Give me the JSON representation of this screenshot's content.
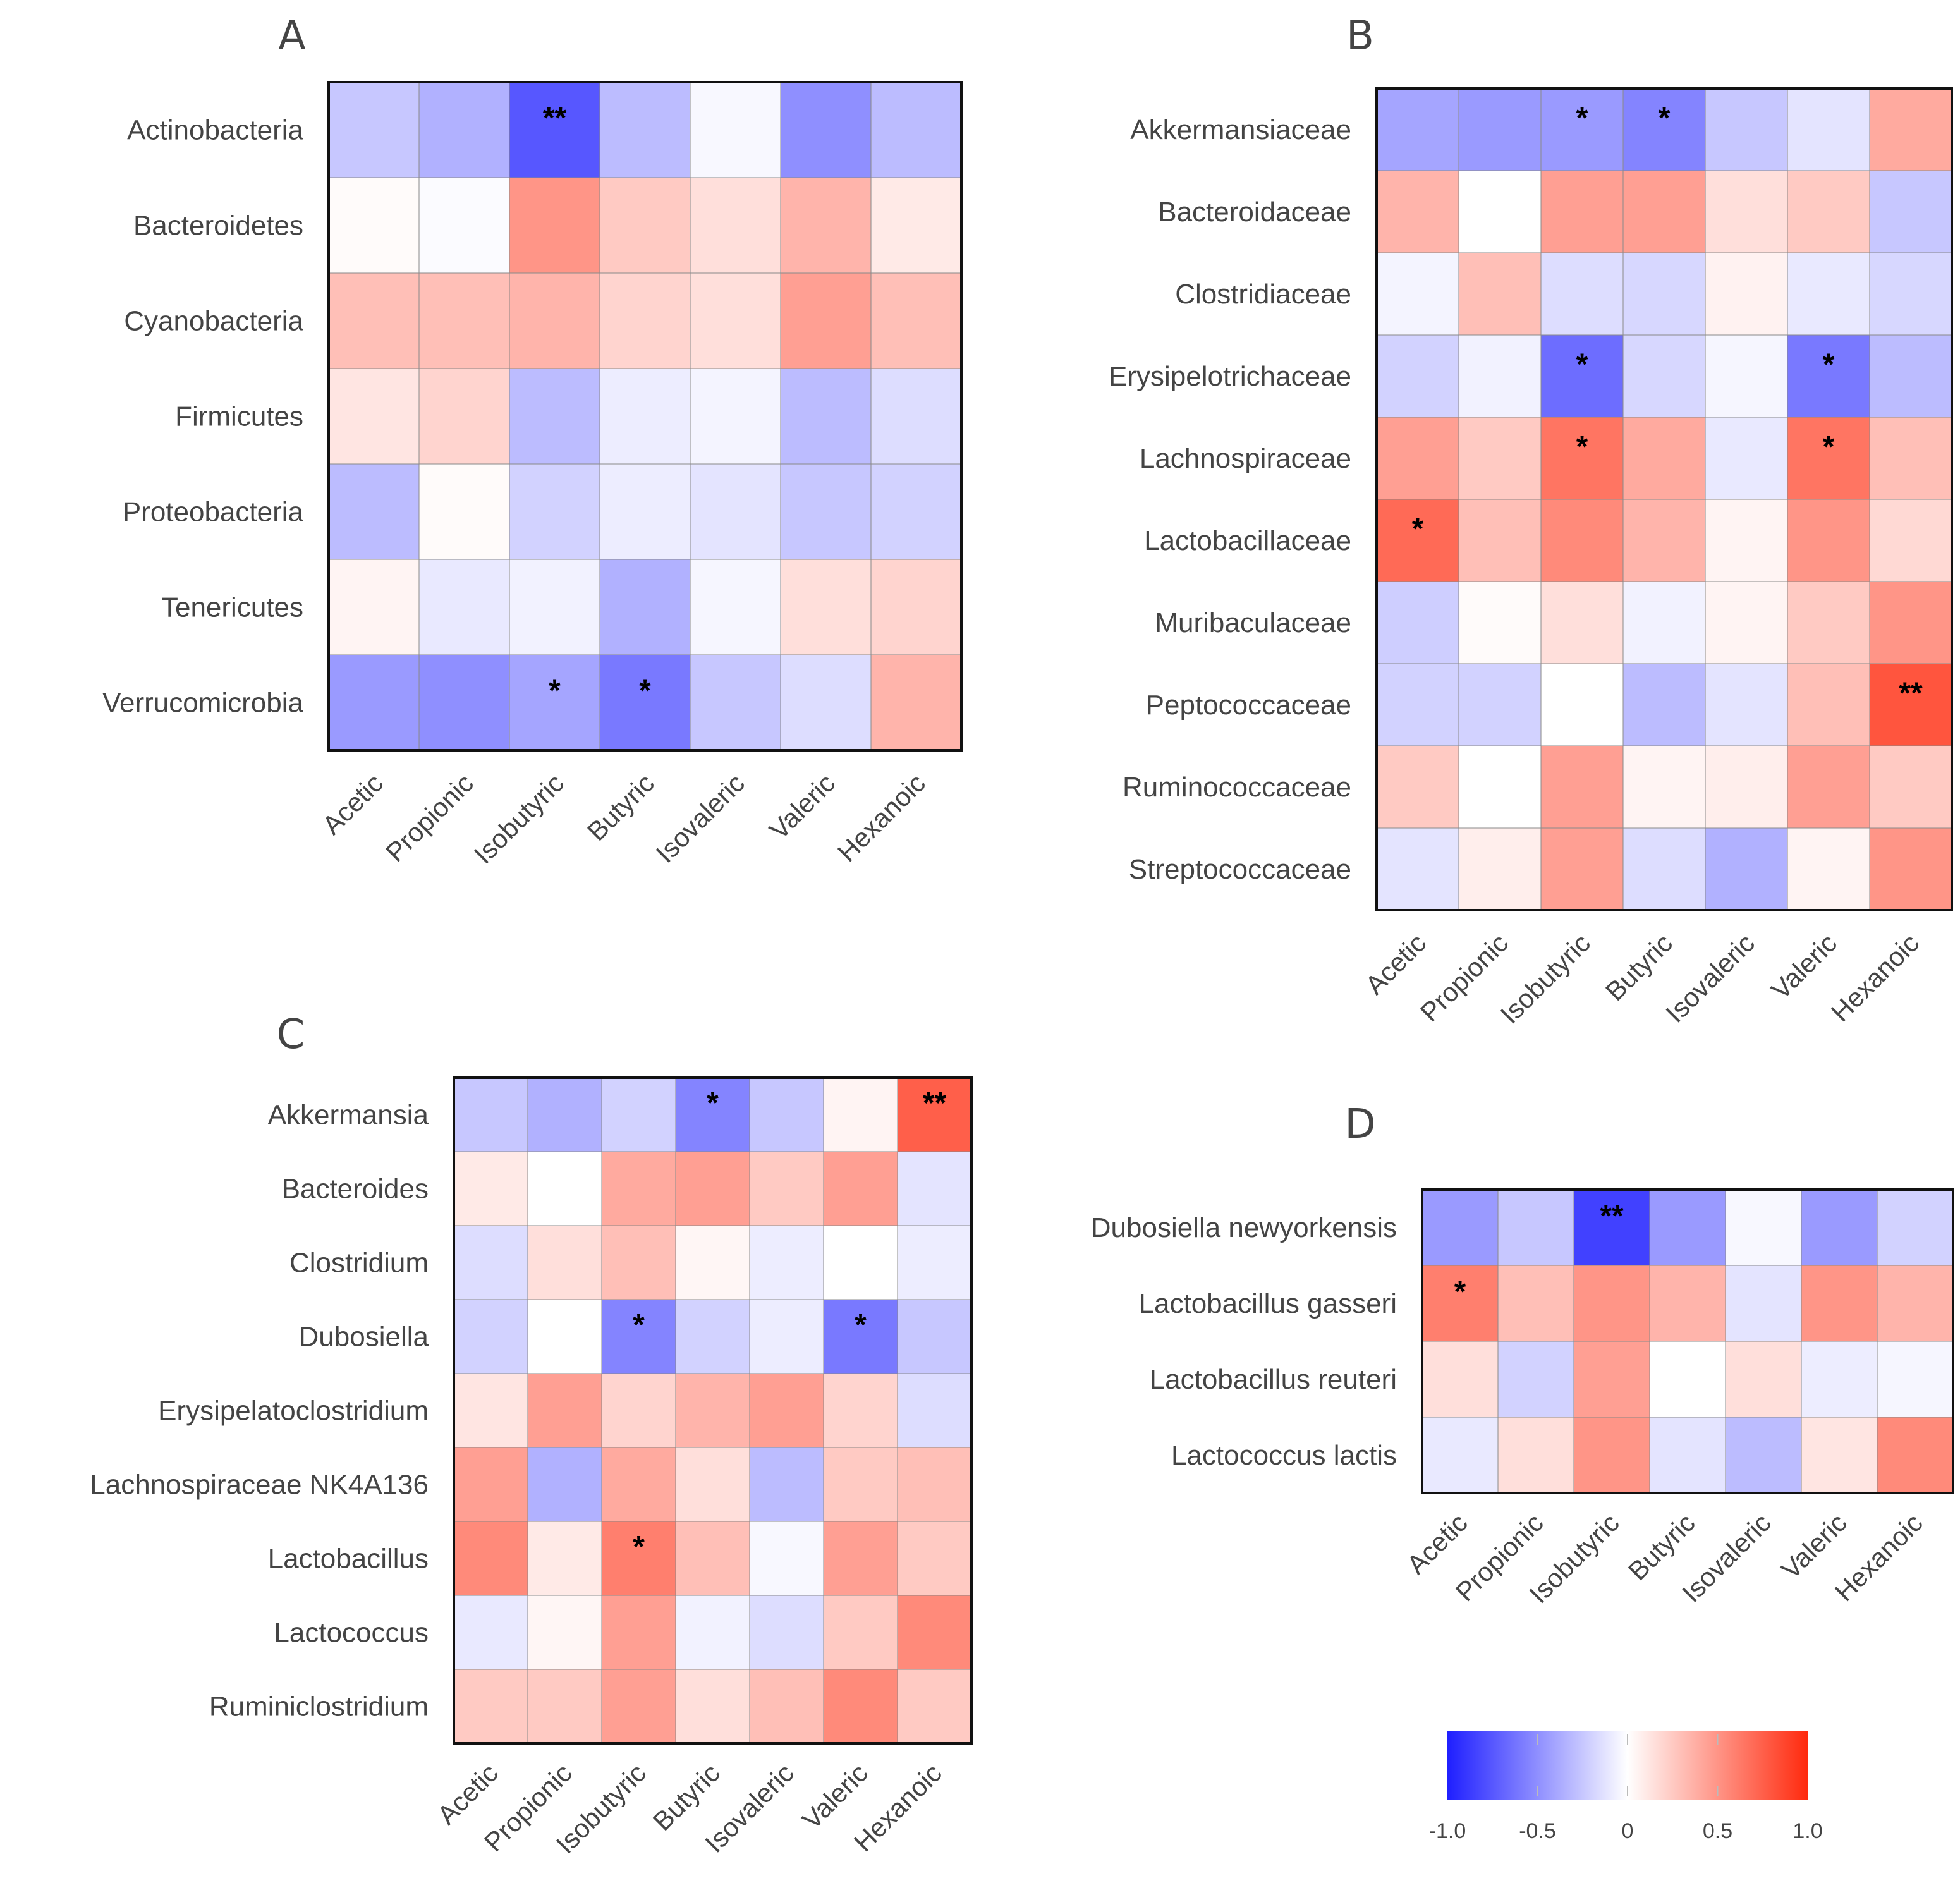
{
  "colorbar": {
    "ticks": [
      "-1.0",
      "-0.5",
      "0",
      "0.5",
      "1.0"
    ],
    "min": -1.0,
    "max": 1.0,
    "colors": {
      "negative": "#1f1fff",
      "zero": "#ffffff",
      "positive": "#ff2a0e"
    }
  },
  "chart_data": [
    {
      "panel": "A",
      "type": "heatmap",
      "rows": [
        "Actinobacteria",
        "Bacteroidetes",
        "Cyanobacteria",
        "Firmicutes",
        "Proteobacteria",
        "Tenericutes",
        "Verrucomicrobia"
      ],
      "columns": [
        "Acetic",
        "Propionic",
        "Isobutyric",
        "Butyric",
        "Isovaleric",
        "Valeric",
        "Hexanoic"
      ],
      "values": [
        [
          -0.25,
          -0.35,
          -0.75,
          -0.3,
          -0.03,
          -0.5,
          -0.3
        ],
        [
          0.02,
          -0.02,
          0.5,
          0.25,
          0.15,
          0.35,
          0.1
        ],
        [
          0.3,
          0.3,
          0.35,
          0.2,
          0.15,
          0.45,
          0.3
        ],
        [
          0.12,
          0.2,
          -0.3,
          -0.08,
          -0.05,
          -0.3,
          -0.15
        ],
        [
          -0.3,
          0.02,
          -0.2,
          -0.08,
          -0.12,
          -0.25,
          -0.2
        ],
        [
          0.05,
          -0.1,
          -0.06,
          -0.35,
          -0.04,
          0.15,
          0.2
        ],
        [
          -0.45,
          -0.5,
          -0.4,
          -0.6,
          -0.25,
          -0.15,
          0.35
        ]
      ],
      "significance": [
        [
          "",
          "",
          "**",
          "",
          "",
          "",
          ""
        ],
        [
          "",
          "",
          "",
          "",
          "",
          "",
          ""
        ],
        [
          "",
          "",
          "",
          "",
          "",
          "",
          ""
        ],
        [
          "",
          "",
          "",
          "",
          "",
          "",
          ""
        ],
        [
          "",
          "",
          "",
          "",
          "",
          "",
          ""
        ],
        [
          "",
          "",
          "",
          "",
          "",
          "",
          ""
        ],
        [
          "",
          "",
          "*",
          "*",
          "",
          "",
          ""
        ]
      ],
      "range": [
        -1.0,
        1.0
      ]
    },
    {
      "panel": "B",
      "type": "heatmap",
      "rows": [
        "Akkermansiaceae",
        "Bacteroidaceae",
        "Clostridiaceae",
        "Erysipelotrichaceae",
        "Lachnospiraceae",
        "Lactobacillaceae",
        "Muribaculaceae",
        "Peptococcaceae",
        "Ruminococcaceae",
        "Streptococcaceae"
      ],
      "columns": [
        "Acetic",
        "Propionic",
        "Isobutyric",
        "Butyric",
        "Isovaleric",
        "Valeric",
        "Hexanoic"
      ],
      "values": [
        [
          -0.4,
          -0.45,
          -0.45,
          -0.55,
          -0.25,
          -0.12,
          0.4
        ],
        [
          0.35,
          0.0,
          0.45,
          0.45,
          0.15,
          0.25,
          -0.25
        ],
        [
          -0.05,
          0.3,
          -0.15,
          -0.18,
          0.06,
          -0.1,
          -0.18
        ],
        [
          -0.2,
          -0.06,
          -0.65,
          -0.18,
          -0.04,
          -0.6,
          -0.3
        ],
        [
          0.45,
          0.25,
          0.65,
          0.4,
          -0.1,
          0.65,
          0.3
        ],
        [
          0.7,
          0.3,
          0.55,
          0.35,
          0.05,
          0.5,
          0.18
        ],
        [
          -0.22,
          0.02,
          0.15,
          -0.06,
          0.05,
          0.25,
          0.5
        ],
        [
          -0.2,
          -0.2,
          0.0,
          -0.3,
          -0.12,
          0.3,
          0.8
        ],
        [
          0.25,
          0.0,
          0.45,
          0.05,
          0.08,
          0.45,
          0.25
        ],
        [
          -0.12,
          0.08,
          0.45,
          -0.15,
          -0.35,
          0.05,
          0.5
        ]
      ],
      "significance": [
        [
          "",
          "",
          "*",
          "*",
          "",
          "",
          ""
        ],
        [
          "",
          "",
          "",
          "",
          "",
          "",
          ""
        ],
        [
          "",
          "",
          "",
          "",
          "",
          "",
          ""
        ],
        [
          "",
          "",
          "*",
          "",
          "",
          "*",
          ""
        ],
        [
          "",
          "",
          "*",
          "",
          "",
          "*",
          ""
        ],
        [
          "*",
          "",
          "",
          "",
          "",
          "",
          ""
        ],
        [
          "",
          "",
          "",
          "",
          "",
          "",
          ""
        ],
        [
          "",
          "",
          "",
          "",
          "",
          "",
          "**"
        ],
        [
          "",
          "",
          "",
          "",
          "",
          "",
          ""
        ],
        [
          "",
          "",
          "",
          "",
          "",
          "",
          ""
        ]
      ],
      "range": [
        -1.0,
        1.0
      ]
    },
    {
      "panel": "C",
      "type": "heatmap",
      "rows": [
        "Akkermansia",
        "Bacteroides",
        "Clostridium",
        "Dubosiella",
        "Erysipelatoclostridium",
        "Lachnospiraceae NK4A136",
        "Lactobacillus",
        "Lactococcus",
        "Ruminiclostridium"
      ],
      "columns": [
        "Acetic",
        "Propionic",
        "Isobutyric",
        "Butyric",
        "Isovaleric",
        "Valeric",
        "Hexanoic"
      ],
      "values": [
        [
          -0.25,
          -0.35,
          -0.2,
          -0.55,
          -0.25,
          0.05,
          0.75
        ],
        [
          0.1,
          0.0,
          0.4,
          0.45,
          0.25,
          0.45,
          -0.12
        ],
        [
          -0.15,
          0.15,
          0.3,
          0.04,
          -0.08,
          0.0,
          -0.08
        ],
        [
          -0.2,
          0.0,
          -0.55,
          -0.2,
          -0.08,
          -0.6,
          -0.25
        ],
        [
          0.12,
          0.45,
          0.2,
          0.35,
          0.45,
          0.2,
          -0.15
        ],
        [
          0.45,
          -0.35,
          0.4,
          0.15,
          -0.3,
          0.25,
          0.3
        ],
        [
          0.55,
          0.1,
          0.6,
          0.3,
          -0.03,
          0.45,
          0.25
        ],
        [
          -0.1,
          0.04,
          0.45,
          -0.06,
          -0.15,
          0.25,
          0.55
        ],
        [
          0.25,
          0.25,
          0.45,
          0.15,
          0.3,
          0.55,
          0.25
        ]
      ],
      "significance": [
        [
          "",
          "",
          "",
          "*",
          "",
          "",
          "**"
        ],
        [
          "",
          "",
          "",
          "",
          "",
          "",
          ""
        ],
        [
          "",
          "",
          "",
          "",
          "",
          "",
          ""
        ],
        [
          "",
          "",
          "*",
          "",
          "",
          "*",
          ""
        ],
        [
          "",
          "",
          "",
          "",
          "",
          "",
          ""
        ],
        [
          "",
          "",
          "",
          "",
          "",
          "",
          ""
        ],
        [
          "",
          "",
          "*",
          "",
          "",
          "",
          ""
        ],
        [
          "",
          "",
          "",
          "",
          "",
          "",
          ""
        ],
        [
          "",
          "",
          "",
          "",
          "",
          "",
          ""
        ]
      ],
      "range": [
        -1.0,
        1.0
      ]
    },
    {
      "panel": "D",
      "type": "heatmap",
      "rows": [
        "Dubosiella newyorkensis",
        "Lactobacillus gasseri",
        "Lactobacillus reuteri",
        "Lactococcus lactis"
      ],
      "columns": [
        "Acetic",
        "Propionic",
        "Isobutyric",
        "Butyric",
        "Isovaleric",
        "Valeric",
        "Hexanoic"
      ],
      "values": [
        [
          -0.45,
          -0.25,
          -0.85,
          -0.45,
          -0.03,
          -0.45,
          -0.2
        ],
        [
          0.6,
          0.3,
          0.5,
          0.35,
          -0.12,
          0.5,
          0.35
        ],
        [
          0.15,
          -0.2,
          0.45,
          0.0,
          0.15,
          -0.08,
          -0.04
        ],
        [
          -0.1,
          0.15,
          0.5,
          -0.12,
          -0.3,
          0.12,
          0.55
        ]
      ],
      "significance": [
        [
          "",
          "",
          "**",
          "",
          "",
          "",
          ""
        ],
        [
          "*",
          "",
          "",
          "",
          "",
          "",
          ""
        ],
        [
          "",
          "",
          "",
          "",
          "",
          "",
          ""
        ],
        [
          "",
          "",
          "",
          "",
          "",
          "",
          ""
        ]
      ],
      "range": [
        -1.0,
        1.0
      ]
    }
  ]
}
